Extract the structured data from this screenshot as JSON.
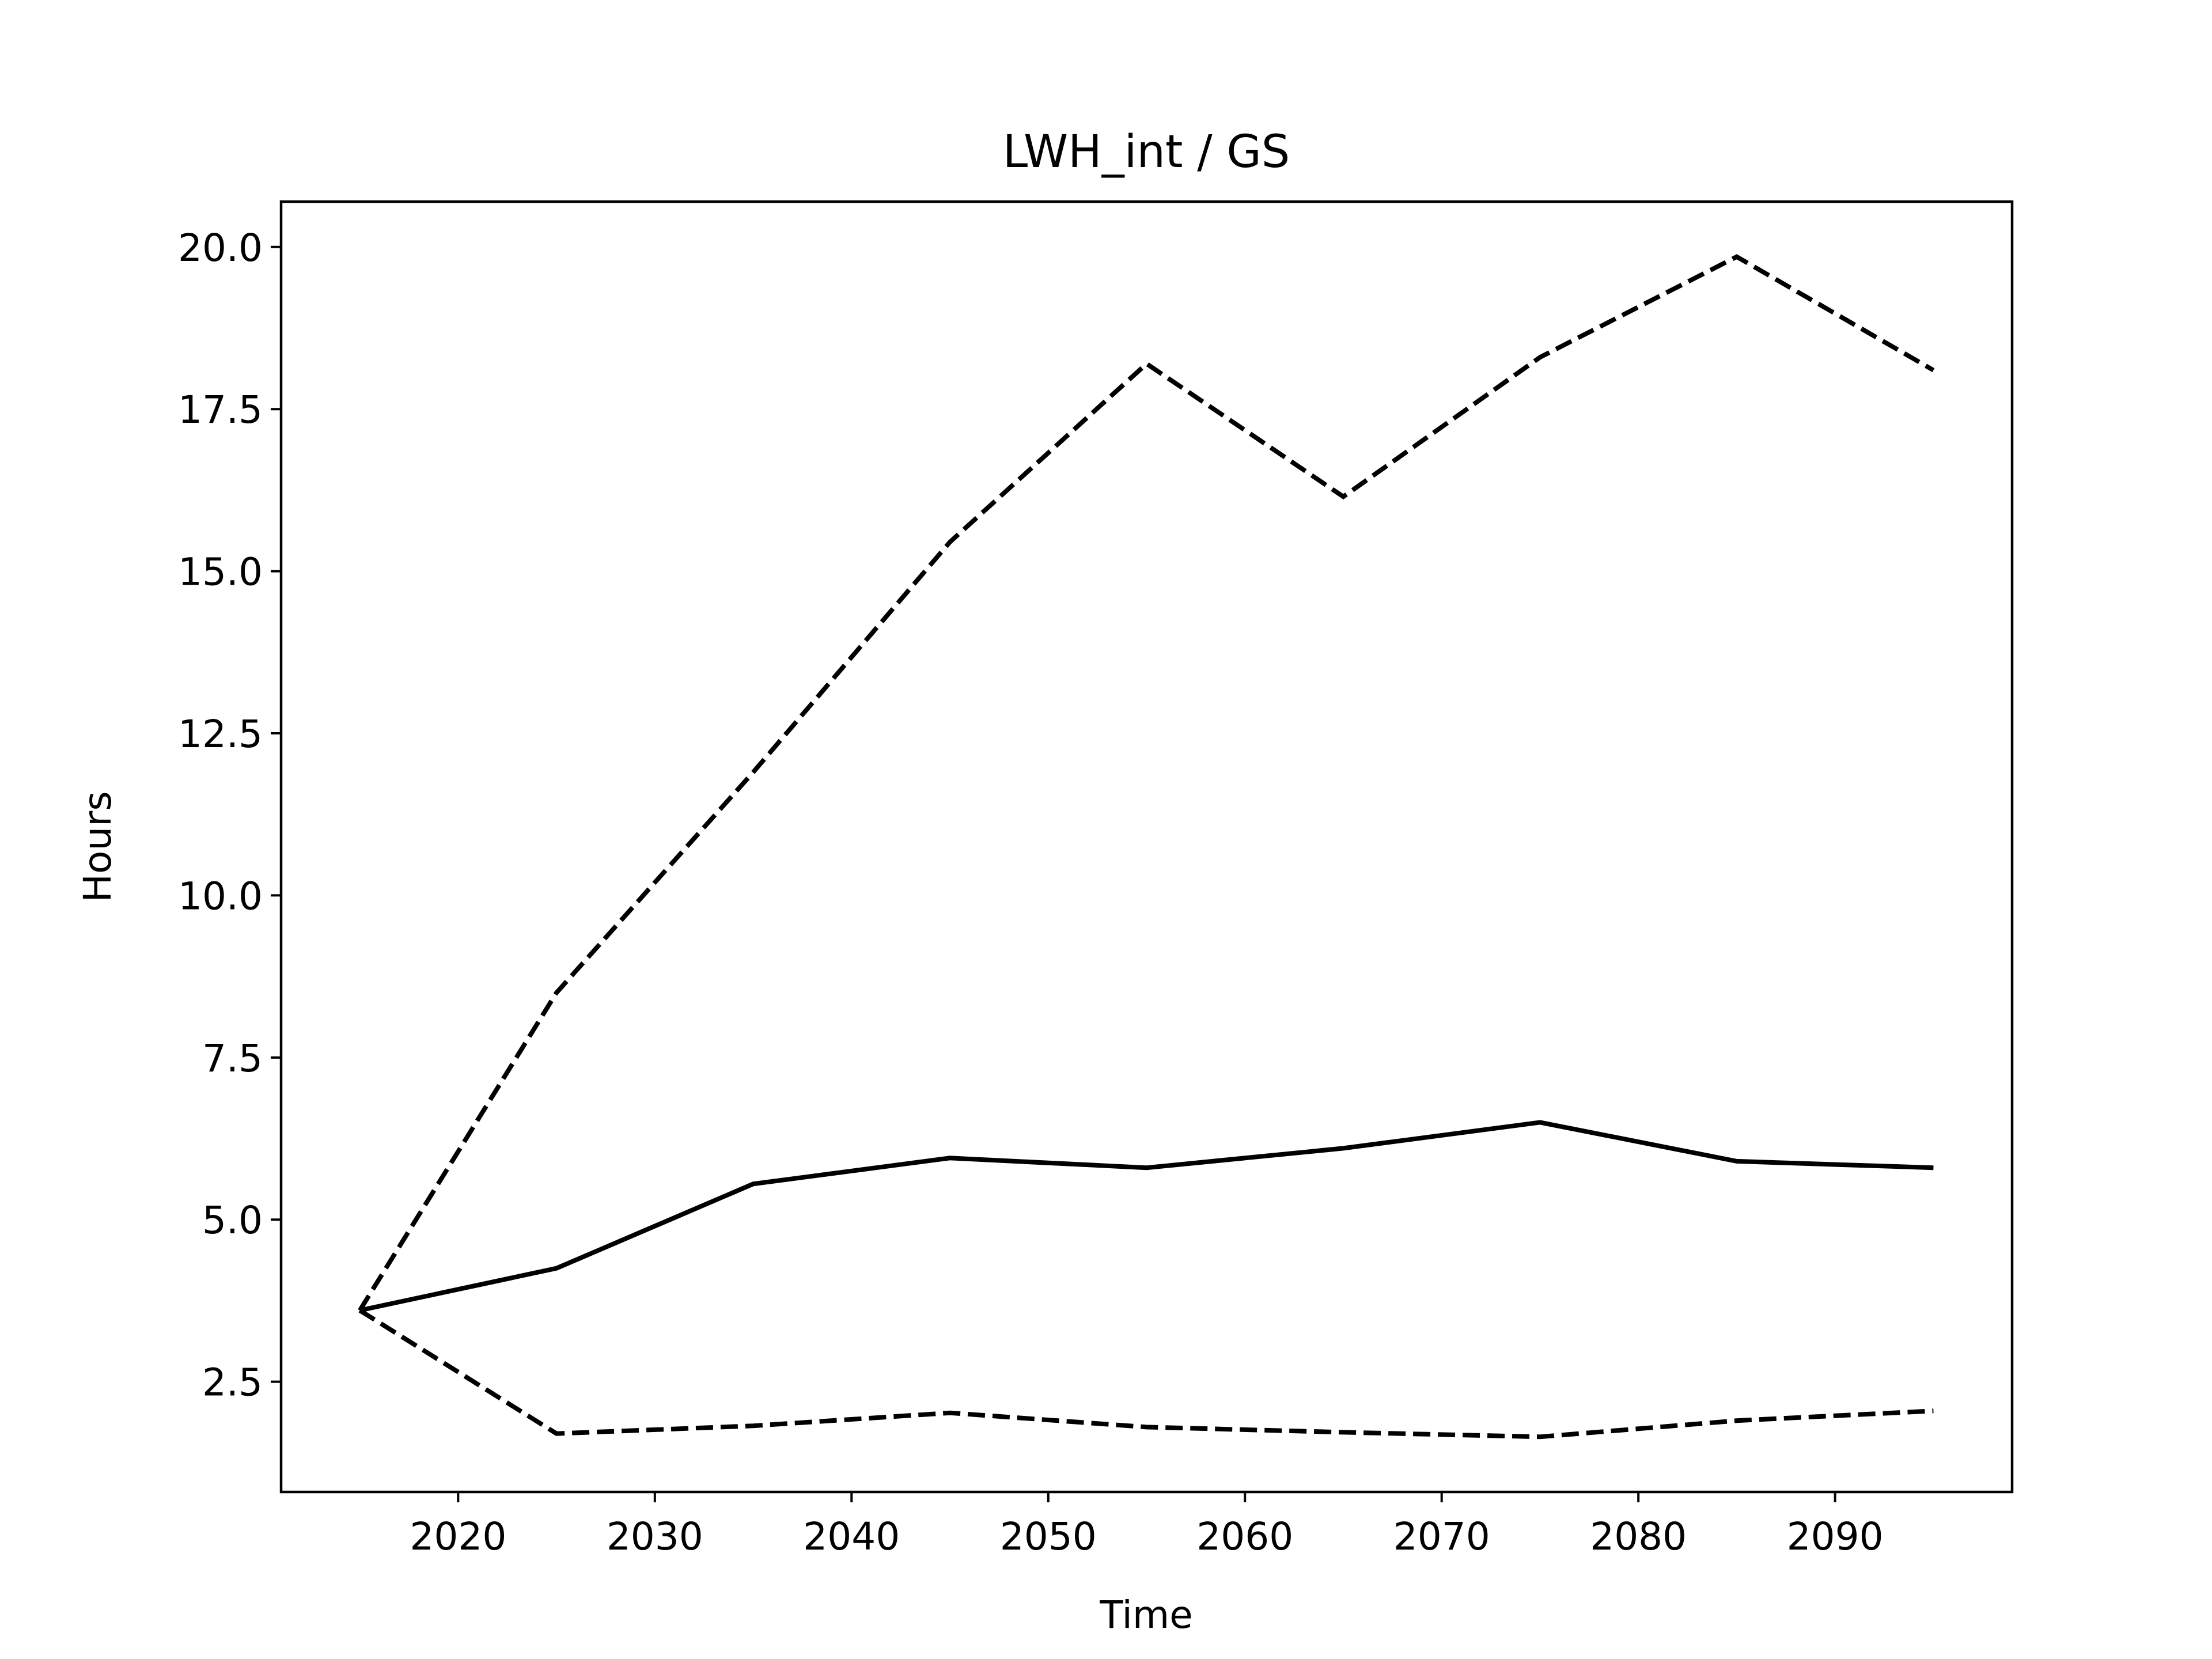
{
  "chart_data": {
    "type": "line",
    "title": "LWH_int / GS",
    "xlabel": "Time",
    "ylabel": "Hours",
    "xlim": [
      2011,
      2099
    ],
    "ylim": [
      0.8,
      20.7
    ],
    "xticks": [
      2020,
      2030,
      2040,
      2050,
      2060,
      2070,
      2080,
      2090
    ],
    "yticks": [
      2.5,
      5.0,
      7.5,
      10.0,
      12.5,
      15.0,
      17.5,
      20.0
    ],
    "xtick_labels": [
      "2020",
      "2030",
      "2040",
      "2050",
      "2060",
      "2070",
      "2080",
      "2090"
    ],
    "ytick_labels": [
      "2.5",
      "5.0",
      "7.5",
      "10.0",
      "12.5",
      "15.0",
      "17.5",
      "20.0"
    ],
    "grid": false,
    "x": [
      2015,
      2025,
      2035,
      2045,
      2055,
      2065,
      2075,
      2085,
      2095
    ],
    "series": [
      {
        "values": [
          3.6,
          4.25,
          5.55,
          5.95,
          5.8,
          6.1,
          6.5,
          5.9,
          5.8
        ],
        "style": "solid",
        "color": "#000000"
      },
      {
        "values": [
          3.6,
          8.5,
          11.9,
          15.45,
          18.2,
          16.15,
          18.3,
          19.85,
          18.1
        ],
        "style": "dashed",
        "color": "#000000"
      },
      {
        "values": [
          3.6,
          1.7,
          1.82,
          2.02,
          1.8,
          1.72,
          1.65,
          1.9,
          2.05
        ],
        "style": "dashed",
        "color": "#000000"
      }
    ]
  }
}
